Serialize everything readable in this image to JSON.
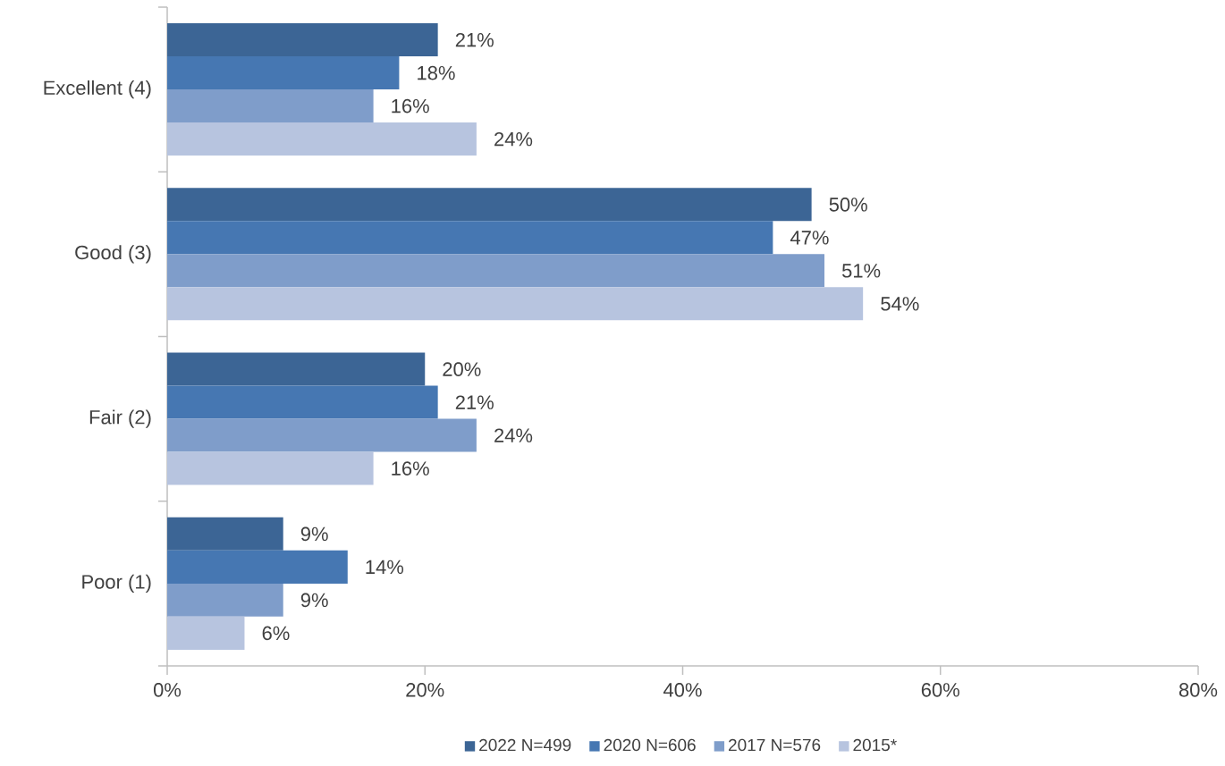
{
  "chart_data": {
    "type": "bar",
    "orientation": "horizontal",
    "categories": [
      "Excellent (4)",
      "Good (3)",
      "Fair (2)",
      "Poor (1)"
    ],
    "series": [
      {
        "name": "2022 N=499",
        "color": "#3c6595",
        "values": [
          21,
          50,
          20,
          9
        ],
        "value_labels": [
          "21%",
          "50%",
          "20%",
          "9%"
        ]
      },
      {
        "name": "2020 N=606",
        "color": "#4677b2",
        "values": [
          18,
          47,
          21,
          14
        ],
        "value_labels": [
          "18%",
          "47%",
          "21%",
          "14%"
        ]
      },
      {
        "name": "2017 N=576",
        "color": "#7f9dca",
        "values": [
          16,
          51,
          24,
          9
        ],
        "value_labels": [
          "16%",
          "51%",
          "24%",
          "9%"
        ]
      },
      {
        "name": "2015*",
        "color": "#b7c4df",
        "values": [
          24,
          54,
          16,
          6
        ],
        "value_labels": [
          "24%",
          "54%",
          "16%",
          "6%"
        ]
      }
    ],
    "xlim": [
      0,
      80
    ],
    "xticks": [
      {
        "value": 0,
        "label": "0%"
      },
      {
        "value": 20,
        "label": "20%"
      },
      {
        "value": 40,
        "label": "40%"
      },
      {
        "value": 60,
        "label": "60%"
      },
      {
        "value": 80,
        "label": "80%"
      }
    ],
    "legend": "bottom"
  }
}
